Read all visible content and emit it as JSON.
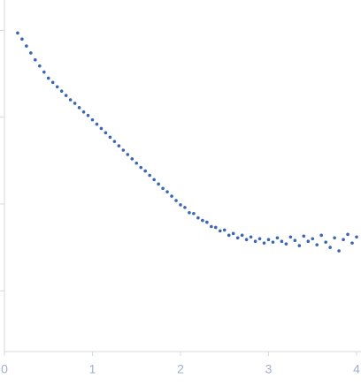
{
  "chart_data": {
    "type": "scatter",
    "color": "#3a66b5",
    "x": [
      0.15,
      0.2,
      0.25,
      0.3,
      0.35,
      0.4,
      0.45,
      0.5,
      0.55,
      0.6,
      0.65,
      0.7,
      0.75,
      0.8,
      0.85,
      0.9,
      0.95,
      1.0,
      1.05,
      1.1,
      1.15,
      1.2,
      1.25,
      1.3,
      1.35,
      1.4,
      1.45,
      1.5,
      1.55,
      1.6,
      1.65,
      1.7,
      1.75,
      1.8,
      1.85,
      1.9,
      1.95,
      2.0,
      2.05,
      2.1,
      2.15,
      2.2,
      2.25,
      2.3,
      2.35,
      2.4,
      2.45,
      2.5,
      2.55,
      2.6,
      2.65,
      2.7,
      2.75,
      2.8,
      2.85,
      2.9,
      2.95,
      3.0,
      3.05,
      3.1,
      3.15,
      3.2,
      3.25,
      3.3,
      3.35,
      3.4,
      3.45,
      3.5,
      3.55,
      3.6,
      3.65,
      3.7,
      3.75,
      3.8,
      3.85,
      3.9,
      3.95,
      4.0
    ],
    "values": [
      2.97,
      2.9,
      2.82,
      2.74,
      2.66,
      2.59,
      2.52,
      2.45,
      2.4,
      2.35,
      2.3,
      2.25,
      2.2,
      2.16,
      2.11,
      2.06,
      2.02,
      1.97,
      1.92,
      1.87,
      1.82,
      1.77,
      1.72,
      1.67,
      1.62,
      1.57,
      1.52,
      1.47,
      1.42,
      1.38,
      1.33,
      1.28,
      1.23,
      1.18,
      1.14,
      1.09,
      1.04,
      0.99,
      0.96,
      0.9,
      0.89,
      0.84,
      0.81,
      0.79,
      0.74,
      0.73,
      0.69,
      0.7,
      0.64,
      0.66,
      0.61,
      0.64,
      0.59,
      0.62,
      0.57,
      0.6,
      0.55,
      0.59,
      0.56,
      0.61,
      0.57,
      0.54,
      0.62,
      0.58,
      0.52,
      0.63,
      0.57,
      0.6,
      0.53,
      0.64,
      0.56,
      0.5,
      0.61,
      0.46,
      0.59,
      0.65,
      0.55,
      0.62
    ],
    "xlim": [
      0,
      4
    ],
    "xticks": [
      0,
      1,
      2,
      3,
      4
    ],
    "ylim": [
      -0.7,
      3.35
    ],
    "yticks": [
      0,
      1,
      2,
      3
    ]
  }
}
